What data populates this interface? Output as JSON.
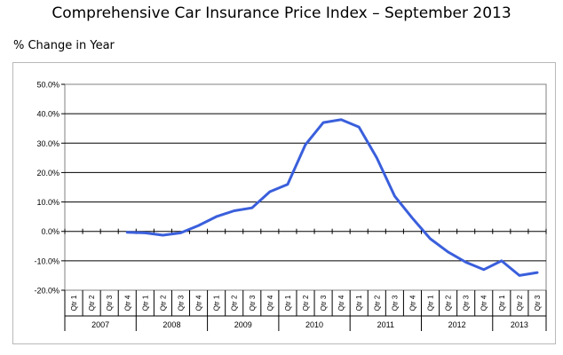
{
  "page_title": "Comprehensive Car Insurance Price Index – September 2013",
  "y_axis_title": "% Change in Year",
  "chart_data": {
    "type": "line",
    "title": "Comprehensive Car Insurance Price Index – September 2013",
    "ylabel": "% Change in Year",
    "xlabel": "",
    "ylim": [
      -20,
      50
    ],
    "y_ticks": [
      50,
      40,
      30,
      20,
      10,
      0,
      -10,
      -20
    ],
    "y_tick_labels": [
      "50.0%",
      "40.0%",
      "30.0%",
      "20.0%",
      "10.0%",
      "0.0%",
      "-10.0%",
      "-20.0%"
    ],
    "grid": true,
    "categories": [
      "Qtr 1",
      "Qtr 2",
      "Qtr 3",
      "Qtr 4",
      "Qtr 1",
      "Qtr 2",
      "Qtr 3",
      "Qtr 4",
      "Qtr 1",
      "Qtr 2",
      "Qtr 3",
      "Qtr 4",
      "Qtr 1",
      "Qtr 2",
      "Qtr 3",
      "Qtr 4",
      "Qtr 1",
      "Qtr 2",
      "Qtr 3",
      "Qtr 4",
      "Qtr 1",
      "Qtr 2",
      "Qtr 3",
      "Qtr 4",
      "Qtr 1",
      "Qtr 2",
      "Qtr 3"
    ],
    "year_groups": [
      {
        "year": "2007",
        "quarters": 4
      },
      {
        "year": "2008",
        "quarters": 4
      },
      {
        "year": "2009",
        "quarters": 4
      },
      {
        "year": "2010",
        "quarters": 4
      },
      {
        "year": "2011",
        "quarters": 4
      },
      {
        "year": "2012",
        "quarters": 4
      },
      {
        "year": "2013",
        "quarters": 3
      }
    ],
    "series": [
      {
        "name": "% Change in Year",
        "color": "#3a5fdc",
        "values": [
          null,
          null,
          null,
          -0.3,
          -0.5,
          -1.3,
          -0.5,
          2.0,
          5.0,
          7.0,
          8.0,
          13.5,
          16.0,
          29.5,
          37.0,
          38.0,
          35.5,
          25.0,
          12.0,
          4.5,
          -2.5,
          -7.0,
          -10.5,
          -13.0,
          -10.0,
          -15.0,
          -14.0
        ]
      }
    ]
  }
}
